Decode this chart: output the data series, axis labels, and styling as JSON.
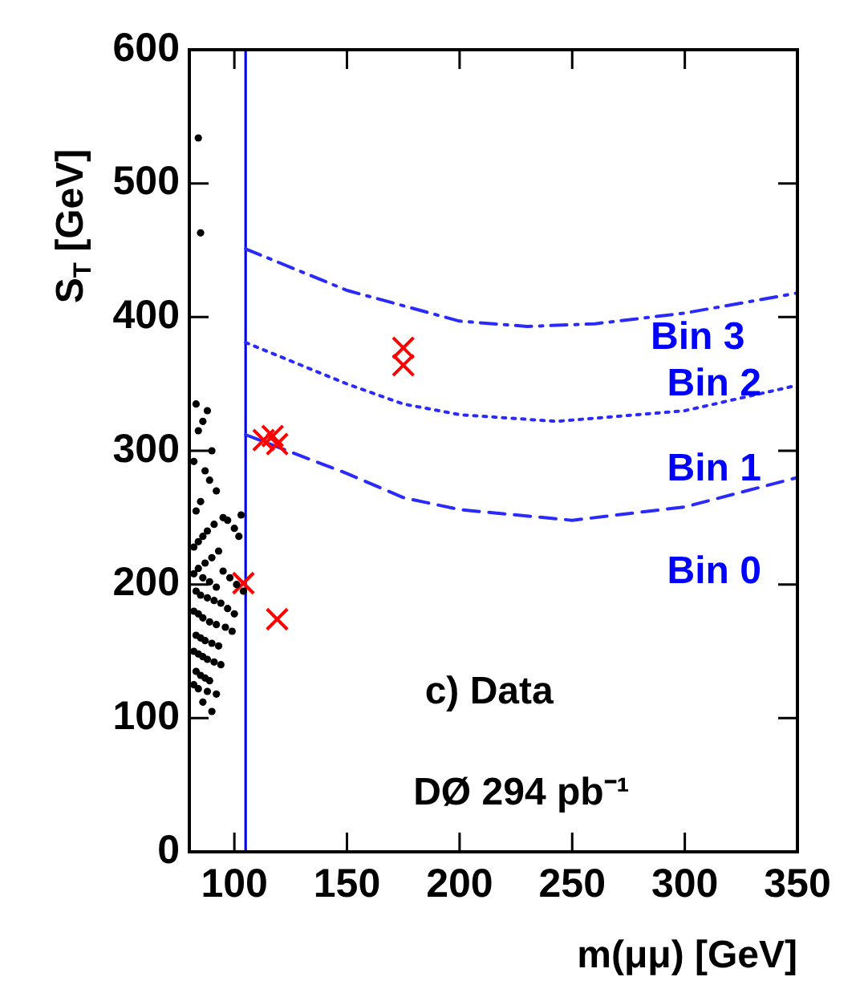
{
  "chart_data": {
    "type": "scatter",
    "xlabel": "m(μμ) [GeV]",
    "ylabel": "S$_{T}$ [GeV]",
    "xlim": [
      80,
      350
    ],
    "xticks": [
      100,
      150,
      200,
      250,
      300,
      350
    ],
    "ylim": [
      0,
      600
    ],
    "yticks": [
      0,
      100,
      200,
      300,
      400,
      500,
      600
    ],
    "grid": false,
    "legend": false,
    "series": [
      {
        "color": "#000000",
        "marker": "circle",
        "x": [
          84,
          85,
          83,
          88,
          86,
          84,
          90,
          82,
          87,
          89,
          92,
          85,
          83,
          95,
          91,
          88,
          86,
          84,
          82,
          93,
          97,
          100,
          102,
          103,
          90,
          87,
          84,
          82,
          86,
          89,
          92,
          95,
          98,
          101,
          104,
          83,
          85,
          88,
          91,
          94,
          97,
          100,
          82,
          84,
          86,
          89,
          92,
          96,
          99,
          83,
          85,
          87,
          90,
          93,
          82,
          84,
          86,
          88,
          91,
          94,
          83,
          85,
          87,
          89,
          82,
          84,
          88,
          92,
          86,
          90
        ],
        "values": [
          534,
          463,
          335,
          330,
          322,
          315,
          300,
          292,
          285,
          278,
          270,
          262,
          255,
          250,
          245,
          240,
          236,
          232,
          228,
          225,
          248,
          242,
          236,
          252,
          220,
          216,
          212,
          208,
          205,
          202,
          198,
          210,
          205,
          200,
          195,
          195,
          192,
          190,
          188,
          186,
          182,
          178,
          180,
          178,
          175,
          172,
          170,
          168,
          165,
          162,
          160,
          158,
          156,
          154,
          150,
          148,
          146,
          144,
          142,
          140,
          135,
          132,
          130,
          128,
          125,
          122,
          120,
          118,
          112,
          105
        ]
      },
      {
        "color": "#ff0000",
        "marker": "cross",
        "x": [
          104,
          119,
          113,
          117,
          119,
          175,
          175
        ],
        "values": [
          201,
          174,
          308,
          311,
          305,
          377,
          364
        ]
      },
      {
        "type": "line",
        "color": "#2a2aff",
        "line_style": "dashed",
        "marker": "none",
        "x": [
          105,
          150,
          175,
          200,
          250,
          300,
          350
        ],
        "values": [
          312,
          283,
          265,
          256,
          248,
          258,
          280
        ]
      },
      {
        "type": "line",
        "color": "#2a2aff",
        "line_style": "dotted",
        "marker": "none",
        "x": [
          105,
          150,
          175,
          200,
          243,
          300,
          350
        ],
        "values": [
          381,
          350,
          335,
          327,
          322,
          330,
          349
        ]
      },
      {
        "type": "line",
        "color": "#2a2aff",
        "line_style": "dashdot",
        "marker": "none",
        "x": [
          105,
          150,
          200,
          230,
          260,
          300,
          350
        ],
        "values": [
          451,
          420,
          397,
          393,
          395,
          403,
          418
        ]
      }
    ],
    "ref_lines": [
      {
        "axis": "x",
        "value": 105,
        "color": "#0000ff",
        "line_style": "solid"
      }
    ],
    "annotations": [
      "Bin 3",
      "Bin 2",
      "Bin 1",
      "Bin 0",
      "c) Data",
      "DØ 294 pb⁻¹"
    ]
  }
}
